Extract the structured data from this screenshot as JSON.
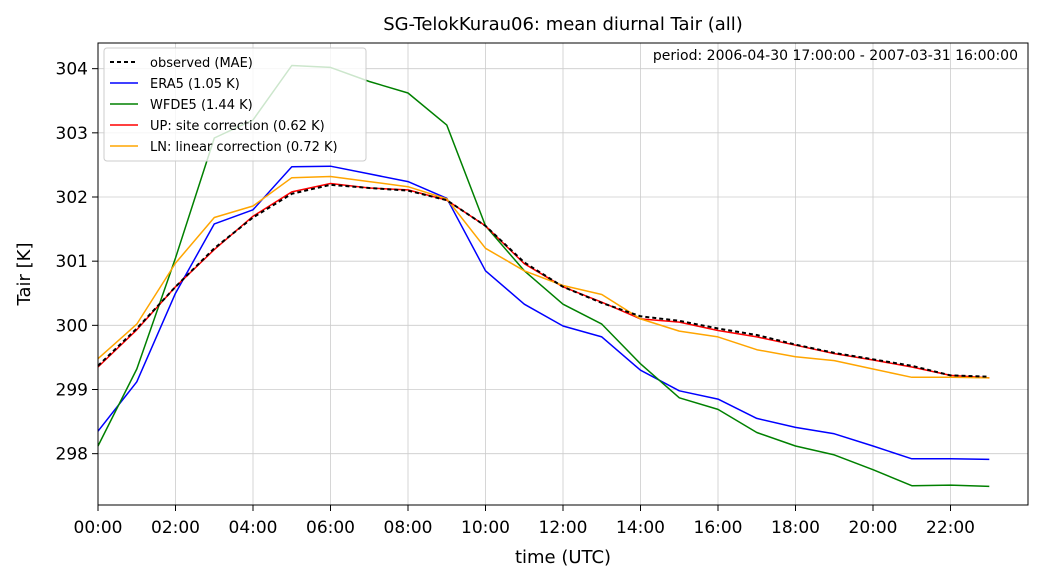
{
  "chart_data": {
    "type": "line",
    "title": "SG-TelokKurau06: mean diurnal Tair (all)",
    "annotation": "period: 2006-04-30 17:00:00 - 2007-03-31 16:00:00",
    "xlabel": "time (UTC)",
    "ylabel": "Tair [K]",
    "xlim": [
      0,
      24
    ],
    "ylim": [
      297.2,
      304.4
    ],
    "x_ticks": [
      0,
      2,
      4,
      6,
      8,
      10,
      12,
      14,
      16,
      18,
      20,
      22
    ],
    "x_tick_labels": [
      "00:00",
      "02:00",
      "04:00",
      "06:00",
      "08:00",
      "10:00",
      "12:00",
      "14:00",
      "16:00",
      "18:00",
      "20:00",
      "22:00"
    ],
    "y_ticks": [
      298,
      299,
      300,
      301,
      302,
      303,
      304
    ],
    "y_tick_labels": [
      "298",
      "299",
      "300",
      "301",
      "302",
      "303",
      "304"
    ],
    "grid": true,
    "legend_position": "top-left",
    "x": [
      0,
      1,
      2,
      3,
      4,
      5,
      6,
      7,
      8,
      9,
      10,
      11,
      12,
      13,
      14,
      15,
      16,
      17,
      18,
      19,
      20,
      21,
      22,
      23
    ],
    "series": [
      {
        "name": "observed (MAE)",
        "color": "#000000",
        "dash": true,
        "width": 2,
        "values": [
          299.37,
          299.95,
          300.6,
          301.2,
          301.68,
          302.05,
          302.19,
          302.14,
          302.1,
          301.95,
          301.55,
          300.98,
          300.6,
          300.35,
          300.14,
          300.07,
          299.95,
          299.85,
          299.7,
          299.57,
          299.47,
          299.37,
          299.22,
          299.2
        ]
      },
      {
        "name": "ERA5 (1.05 K)",
        "color": "#0000ff",
        "dash": false,
        "width": 1.5,
        "values": [
          298.35,
          299.12,
          300.5,
          301.58,
          301.8,
          302.47,
          302.48,
          302.36,
          302.24,
          301.98,
          300.85,
          300.33,
          299.99,
          299.82,
          299.3,
          298.98,
          298.85,
          298.55,
          298.41,
          298.31,
          298.12,
          297.92,
          297.92,
          297.91
        ]
      },
      {
        "name": "WFDE5 (1.44 K)",
        "color": "#008000",
        "dash": false,
        "width": 1.5,
        "values": [
          298.12,
          299.32,
          301.05,
          302.92,
          303.2,
          304.05,
          304.02,
          303.8,
          303.62,
          303.12,
          301.55,
          300.85,
          300.33,
          300.02,
          299.4,
          298.87,
          298.69,
          298.33,
          298.12,
          297.98,
          297.75,
          297.5,
          297.51,
          297.49
        ]
      },
      {
        "name": "UP: site correction (0.62 K)",
        "color": "#ff0000",
        "dash": false,
        "width": 1.5,
        "values": [
          299.35,
          299.93,
          300.6,
          301.18,
          301.7,
          302.08,
          302.21,
          302.14,
          302.11,
          301.95,
          301.55,
          300.96,
          300.6,
          300.36,
          300.1,
          300.05,
          299.92,
          299.82,
          299.69,
          299.56,
          299.46,
          299.35,
          299.22,
          299.18
        ]
      },
      {
        "name": "LN: linear correction (0.72 K)",
        "color": "#ffa500",
        "dash": false,
        "width": 1.5,
        "values": [
          299.48,
          300.02,
          300.97,
          301.68,
          301.86,
          302.3,
          302.32,
          302.24,
          302.16,
          301.97,
          301.2,
          300.85,
          300.62,
          300.48,
          300.1,
          299.91,
          299.82,
          299.62,
          299.51,
          299.45,
          299.32,
          299.19,
          299.19,
          299.18
        ]
      }
    ]
  }
}
